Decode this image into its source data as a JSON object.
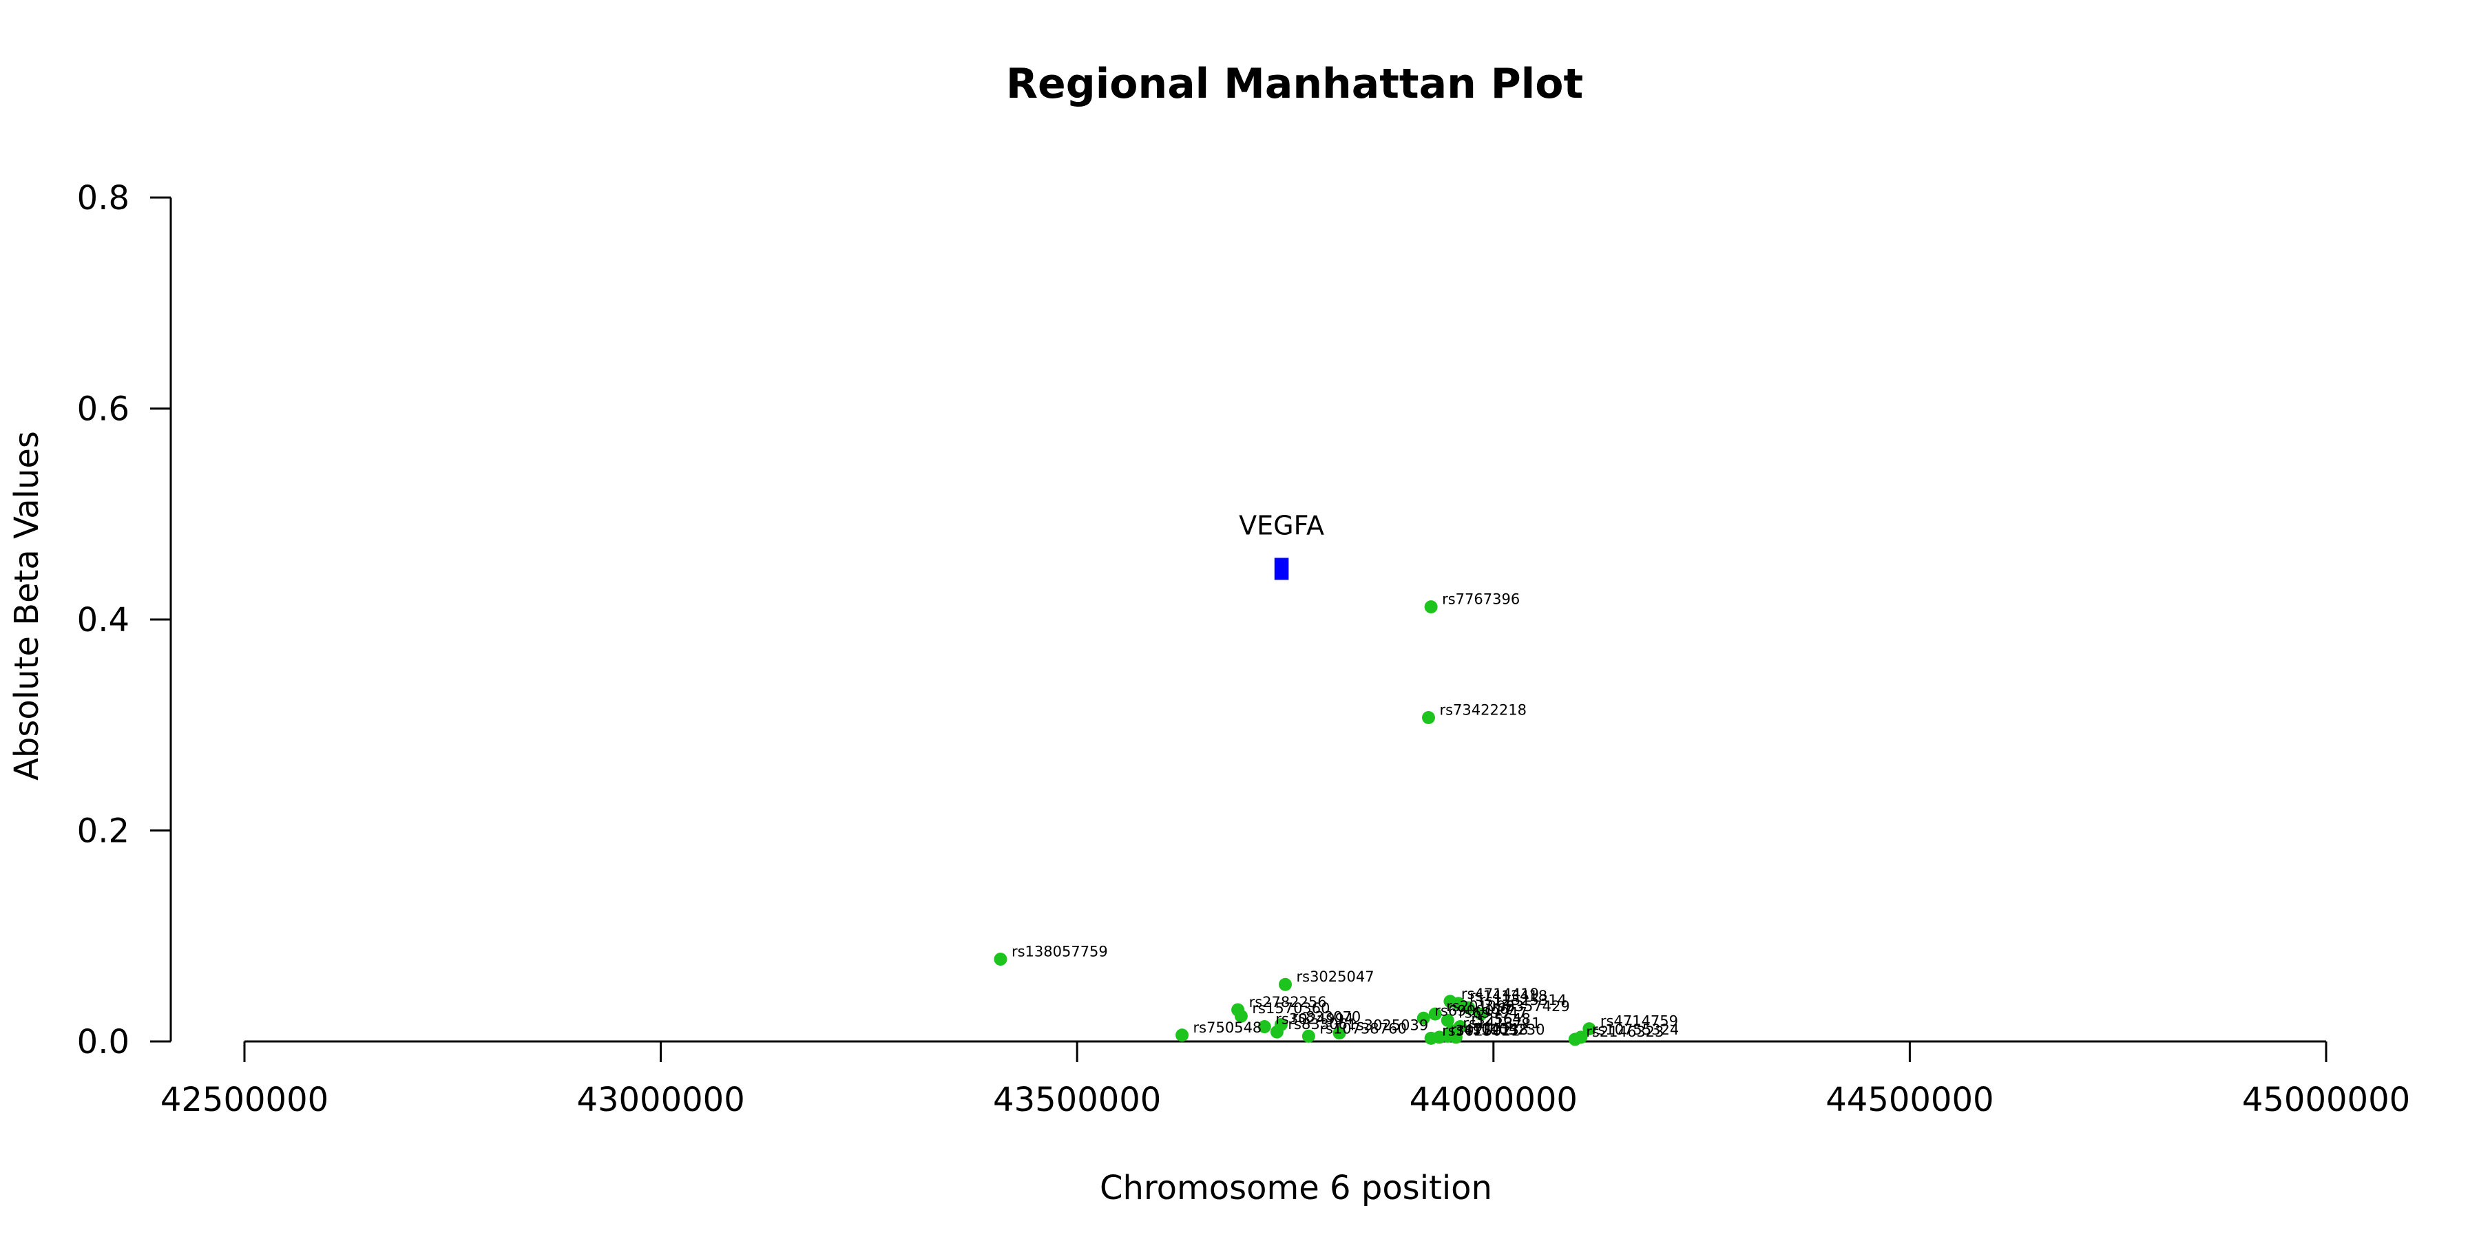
{
  "chart_data": {
    "type": "scatter",
    "title": "Regional Manhattan Plot",
    "xlabel": "Chromosome 6 position",
    "ylabel": "Absolute Beta Values",
    "xlim": [
      42500000,
      45000000
    ],
    "ylim": [
      0,
      0.8
    ],
    "xticks": [
      "42500000",
      "43000000",
      "43500000",
      "44000000",
      "44500000",
      "45000000"
    ],
    "yticks": [
      "0.0",
      "0.2",
      "0.4",
      "0.6",
      "0.8"
    ],
    "grid": false,
    "colors": {
      "snp": "#1ec41e",
      "gene": "#0000ff"
    },
    "gene": {
      "name": "VEGFA",
      "start": 43737000,
      "end": 43754000,
      "y": 0.448
    },
    "points": [
      {
        "label": "rs7767396",
        "x": 43925000,
        "y": 0.412
      },
      {
        "label": "rs73422218",
        "x": 43922000,
        "y": 0.307
      },
      {
        "label": "rs138057759",
        "x": 43408000,
        "y": 0.078
      },
      {
        "label": "rs3025047",
        "x": 43750000,
        "y": 0.054
      },
      {
        "label": "rs4714419",
        "x": 43948000,
        "y": 0.038
      },
      {
        "label": "rs1413418",
        "x": 43958000,
        "y": 0.036
      },
      {
        "label": "rs12525314",
        "x": 43970000,
        "y": 0.032
      },
      {
        "label": "rs2782256",
        "x": 43693000,
        "y": 0.03
      },
      {
        "label": "rs1570360",
        "x": 43697000,
        "y": 0.024
      },
      {
        "label": "rs9357429",
        "x": 43985000,
        "y": 0.026
      },
      {
        "label": "rs2010963",
        "x": 43930000,
        "y": 0.026
      },
      {
        "label": "rs6900017",
        "x": 43916000,
        "y": 0.022
      },
      {
        "label": "rs699947",
        "x": 43945000,
        "y": 0.02
      },
      {
        "label": "rs4714759",
        "x": 44115000,
        "y": 0.012
      },
      {
        "label": "rs833070",
        "x": 43745000,
        "y": 0.016
      },
      {
        "label": "rs3024994",
        "x": 43725000,
        "y": 0.014
      },
      {
        "label": "rs25648",
        "x": 43960000,
        "y": 0.014
      },
      {
        "label": "rs1413711",
        "x": 43950000,
        "y": 0.01
      },
      {
        "label": "rs833061",
        "x": 43740000,
        "y": 0.009
      },
      {
        "label": "rs750548",
        "x": 43626000,
        "y": 0.006
      },
      {
        "label": "rs3025039",
        "x": 43815000,
        "y": 0.008
      },
      {
        "label": "rs10738760",
        "x": 43778000,
        "y": 0.005
      },
      {
        "label": "rs4712138",
        "x": 43935000,
        "y": 0.004
      },
      {
        "label": "rs10434",
        "x": 43945000,
        "y": 0.005
      },
      {
        "label": "rs1005230",
        "x": 43955000,
        "y": 0.004
      },
      {
        "label": "rs3025021",
        "x": 43925000,
        "y": 0.003
      },
      {
        "label": "rs10755324",
        "x": 44105000,
        "y": 0.004
      },
      {
        "label": "rs2146323",
        "x": 44098000,
        "y": 0.002
      }
    ]
  }
}
